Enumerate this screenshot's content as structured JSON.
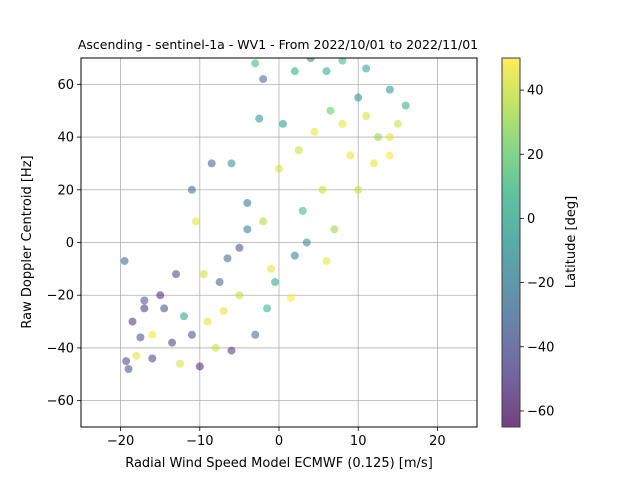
{
  "chart_data": {
    "type": "scatter",
    "title": "Ascending - sentinel-1a - WV1 - From 2022/10/01 to 2022/11/01",
    "xlabel": "Radial Wind Speed Model ECMWF (0.125) [m/s]",
    "ylabel": "Raw Doppler Centroid [Hz]",
    "xlim": [
      -25,
      25
    ],
    "ylim": [
      -70,
      70
    ],
    "xticks": [
      -20,
      -10,
      0,
      10,
      20
    ],
    "yticks": [
      -60,
      -40,
      -20,
      0,
      20,
      40,
      60
    ],
    "grid": true,
    "colorbar": {
      "label": "Latitude [deg]",
      "range": [
        -65,
        50
      ],
      "ticks": [
        40,
        20,
        0,
        -20,
        -40,
        -60
      ],
      "colormap": "viridis"
    },
    "points": [
      [
        -19.5,
        -7,
        -30
      ],
      [
        -19.3,
        -45,
        -45
      ],
      [
        -19,
        -48,
        -40
      ],
      [
        -18.5,
        -30,
        -50
      ],
      [
        -18,
        -43,
        45
      ],
      [
        -17.5,
        -36,
        -40
      ],
      [
        -17,
        -25,
        -50
      ],
      [
        -16,
        -44,
        -45
      ],
      [
        -14.5,
        -25,
        -42
      ],
      [
        -13.5,
        -38,
        -48
      ],
      [
        -12.5,
        -46,
        42
      ],
      [
        -11,
        -35,
        -40
      ],
      [
        -10,
        -47,
        -55
      ],
      [
        -9,
        -30,
        45
      ],
      [
        -8,
        -40,
        40
      ],
      [
        -7.5,
        -15,
        -35
      ],
      [
        -6,
        -41,
        -50
      ],
      [
        -4,
        5,
        -20
      ],
      [
        -3,
        -35,
        -30
      ],
      [
        -10.5,
        8,
        45
      ],
      [
        -11,
        20,
        -30
      ],
      [
        -8.5,
        30,
        -35
      ],
      [
        -6,
        30,
        -10
      ],
      [
        -2.5,
        47,
        -10
      ],
      [
        -2,
        62,
        -30
      ],
      [
        -3,
        68,
        10
      ],
      [
        0.5,
        45,
        -5
      ],
      [
        2,
        65,
        5
      ],
      [
        4,
        70,
        -20
      ],
      [
        6,
        65,
        0
      ],
      [
        8,
        69,
        10
      ],
      [
        11,
        66,
        0
      ],
      [
        14,
        58,
        -10
      ],
      [
        16,
        52,
        5
      ],
      [
        15,
        45,
        40
      ],
      [
        14,
        40,
        45
      ],
      [
        14,
        33,
        50
      ],
      [
        12,
        30,
        45
      ],
      [
        10,
        20,
        40
      ],
      [
        6,
        -7,
        45
      ],
      [
        7,
        5,
        30
      ],
      [
        1.5,
        -21,
        50
      ],
      [
        -1,
        -10,
        45
      ],
      [
        2,
        -5,
        -20
      ],
      [
        3,
        12,
        10
      ],
      [
        -0.5,
        -15,
        0
      ],
      [
        -5,
        -20,
        40
      ],
      [
        -15,
        -20,
        -55
      ],
      [
        -13,
        -12,
        -45
      ],
      [
        -16,
        -35,
        48
      ],
      [
        -17,
        -22,
        -40
      ],
      [
        -12,
        -28,
        0
      ],
      [
        -9.5,
        -12,
        40
      ],
      [
        -7,
        -26,
        45
      ],
      [
        -6.5,
        -6,
        -30
      ],
      [
        -5,
        -2,
        -40
      ],
      [
        -4,
        15,
        -25
      ],
      [
        -2,
        8,
        35
      ],
      [
        0,
        28,
        42
      ],
      [
        2.5,
        35,
        40
      ],
      [
        4.5,
        42,
        45
      ],
      [
        6.5,
        50,
        20
      ],
      [
        8,
        45,
        45
      ],
      [
        9,
        33,
        45
      ],
      [
        10,
        55,
        -10
      ],
      [
        11,
        48,
        42
      ],
      [
        12.5,
        40,
        30
      ],
      [
        5.5,
        20,
        40
      ],
      [
        3.5,
        0,
        -15
      ],
      [
        -1.5,
        -25,
        5
      ]
    ]
  }
}
